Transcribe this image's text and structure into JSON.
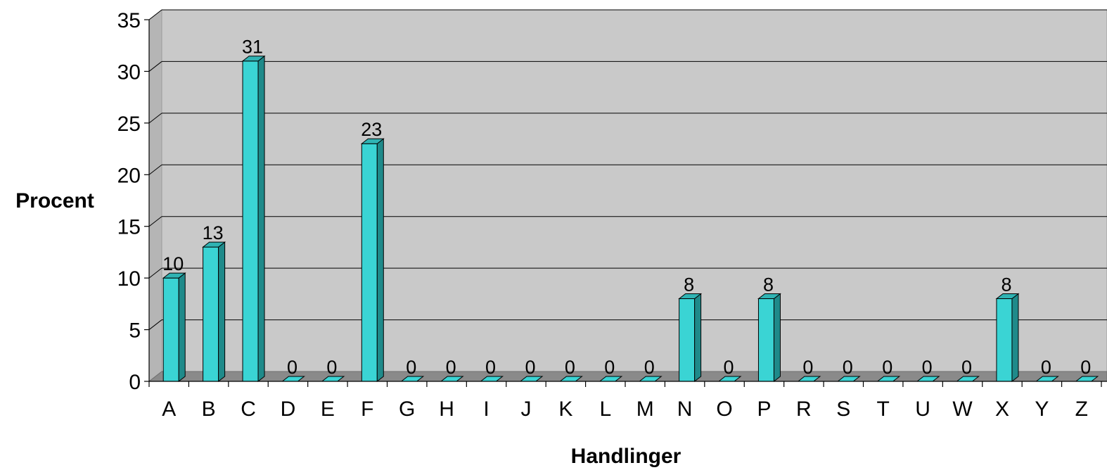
{
  "chart_data": {
    "type": "bar",
    "title": "",
    "xlabel": "Handlinger",
    "ylabel": "Procent",
    "ylim": [
      0,
      35
    ],
    "yticks": [
      0,
      5,
      10,
      15,
      20,
      25,
      30,
      35
    ],
    "categories": [
      "A",
      "B",
      "C",
      "D",
      "E",
      "F",
      "G",
      "H",
      "I",
      "J",
      "K",
      "L",
      "M",
      "N",
      "O",
      "P",
      "R",
      "S",
      "T",
      "U",
      "W",
      "X",
      "Y",
      "Z"
    ],
    "values": [
      10,
      13,
      31,
      0,
      0,
      23,
      0,
      0,
      0,
      0,
      0,
      0,
      0,
      8,
      0,
      8,
      0,
      0,
      0,
      0,
      0,
      8,
      0,
      0
    ],
    "grid": true,
    "legend": "none",
    "colors": {
      "bar_front": "#3ad4d4",
      "bar_side": "#1f8a8a",
      "bar_top": "#2fb3b3",
      "wall": "#c9c9c9",
      "floor": "#8a8a8a",
      "grid": "#000000"
    }
  }
}
